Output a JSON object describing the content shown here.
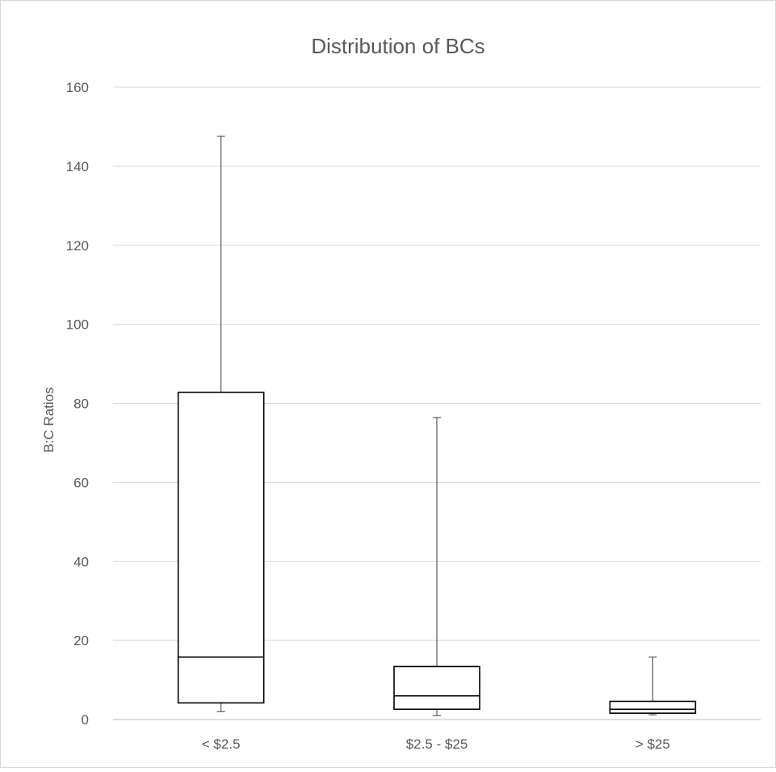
{
  "chart_data": {
    "type": "boxplot",
    "title": "Distribution of BCs",
    "ylabel": "B:C Ratios",
    "xlabel": "",
    "ylim": [
      0,
      160
    ],
    "ytick_step": 20,
    "grid": true,
    "legend": "none",
    "categories": [
      "< $2.5",
      "$2.5 - $25",
      "> $25"
    ],
    "series": [
      {
        "min": 2,
        "q1": 4.2,
        "median": 15.8,
        "q3": 82.8,
        "max": 147.6
      },
      {
        "min": 1,
        "q1": 2.6,
        "median": 6,
        "q3": 13.4,
        "max": 76.4
      },
      {
        "min": 1.2,
        "q1": 1.6,
        "median": 2.6,
        "q3": 4.6,
        "max": 15.8
      }
    ],
    "colors": {
      "box_fill": "#ffffff",
      "box_stroke": "#000000",
      "whisker": "#595959",
      "grid": "#d9d9d9",
      "text": "#595959"
    }
  }
}
